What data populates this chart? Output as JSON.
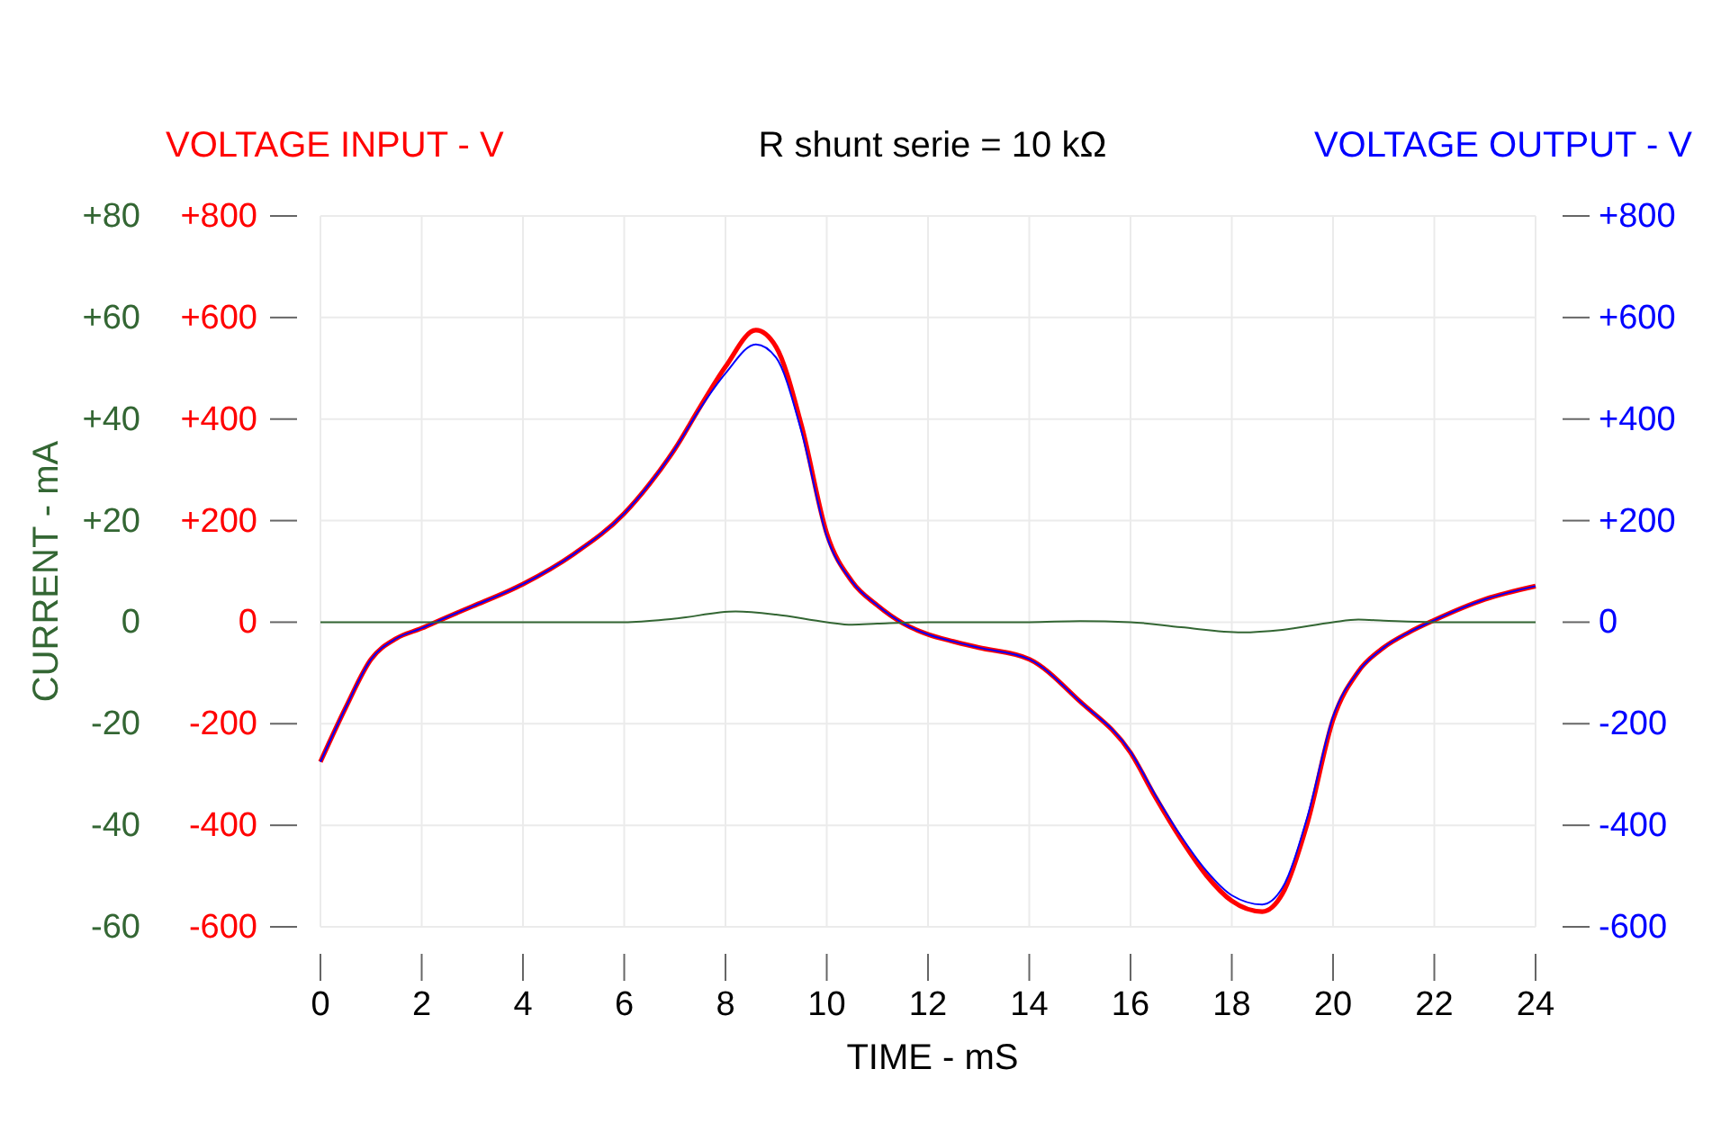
{
  "chart_data": {
    "type": "line",
    "title": "R shunt serie = 10 kΩ",
    "xlabel": "TIME - mS",
    "ylabel": "VOLTAGE INPUT - V",
    "y2label": "VOLTAGE OUTPUT - V",
    "y3label": "CURRENT - mA",
    "x": [
      0,
      0.5,
      1,
      1.5,
      2,
      2.5,
      3,
      4,
      5,
      6,
      6.5,
      7,
      7.5,
      8,
      8.6,
      9,
      9.5,
      10,
      10.5,
      11,
      11.5,
      12,
      12.5,
      13,
      14,
      15,
      16,
      16.5,
      17,
      17.5,
      18,
      18.6,
      19,
      19.5,
      20,
      20.5,
      21,
      21.5,
      22,
      23,
      24
    ],
    "series": [
      {
        "color": "#ff0000",
        "values": [
          -275,
          -168,
          -73,
          -32,
          -12,
          10,
          31,
          75,
          134,
          214,
          272,
          341,
          424,
          503,
          575,
          542,
          388,
          175,
          80,
          33,
          -2,
          -24,
          -38,
          -50,
          -73,
          -156,
          -257,
          -346,
          -428,
          -499,
          -549,
          -570,
          -535,
          -393,
          -192,
          -97,
          -50,
          -20,
          4,
          45,
          71
        ]
      },
      {
        "color": "#0000ff",
        "axis": "y2",
        "values": [
          -275,
          -168,
          -73,
          -32,
          -12,
          10,
          31,
          75,
          134,
          214,
          272,
          341,
          421,
          490,
          547,
          521,
          376,
          169,
          80,
          33,
          -2,
          -24,
          -38,
          -50,
          -73,
          -156,
          -255,
          -342,
          -422,
          -490,
          -538,
          -556,
          -523,
          -381,
          -186,
          -97,
          -50,
          -20,
          4,
          45,
          71
        ]
      },
      {
        "color": "#336633",
        "axis": "y3",
        "x": [
          0,
          2,
          4,
          6,
          7,
          8.2,
          9,
          10,
          10.5,
          11,
          12,
          14,
          15,
          16,
          17,
          18.2,
          19,
          20,
          20.5,
          21,
          22,
          24
        ],
        "values": [
          0,
          0,
          0,
          0,
          0.7,
          2.1,
          1.5,
          0,
          -0.5,
          -0.3,
          0,
          0,
          0.2,
          0,
          -1,
          -2,
          -1.5,
          0,
          0.5,
          0.3,
          0,
          0
        ]
      }
    ],
    "xlim": [
      0,
      24
    ],
    "xticks": [
      0,
      2,
      4,
      6,
      8,
      10,
      12,
      14,
      16,
      18,
      20,
      22,
      24
    ],
    "ylim": [
      -600,
      800
    ],
    "yticks": [
      -600,
      -400,
      -200,
      0,
      {
        "value": 200,
        "label": "+200"
      },
      {
        "value": 400,
        "label": "+400"
      },
      {
        "value": 600,
        "label": "+600"
      },
      {
        "value": 800,
        "label": "+800"
      }
    ],
    "y2lim": [
      -600,
      800
    ],
    "y2ticks": [
      -600,
      -400,
      -200,
      0,
      {
        "value": 200,
        "label": "+200"
      },
      {
        "value": 400,
        "label": "+400"
      },
      {
        "value": 600,
        "label": "+600"
      },
      {
        "value": 800,
        "label": "+800"
      }
    ],
    "y3lim": [
      -60,
      80
    ],
    "y3ticks": [
      -60,
      -40,
      -20,
      0,
      {
        "value": 20,
        "label": "+20"
      },
      {
        "value": 40,
        "label": "+40"
      },
      {
        "value": 60,
        "label": "+60"
      },
      {
        "value": 80,
        "label": "+80"
      }
    ],
    "grid": true,
    "marker": "none",
    "line_style": "solid"
  }
}
